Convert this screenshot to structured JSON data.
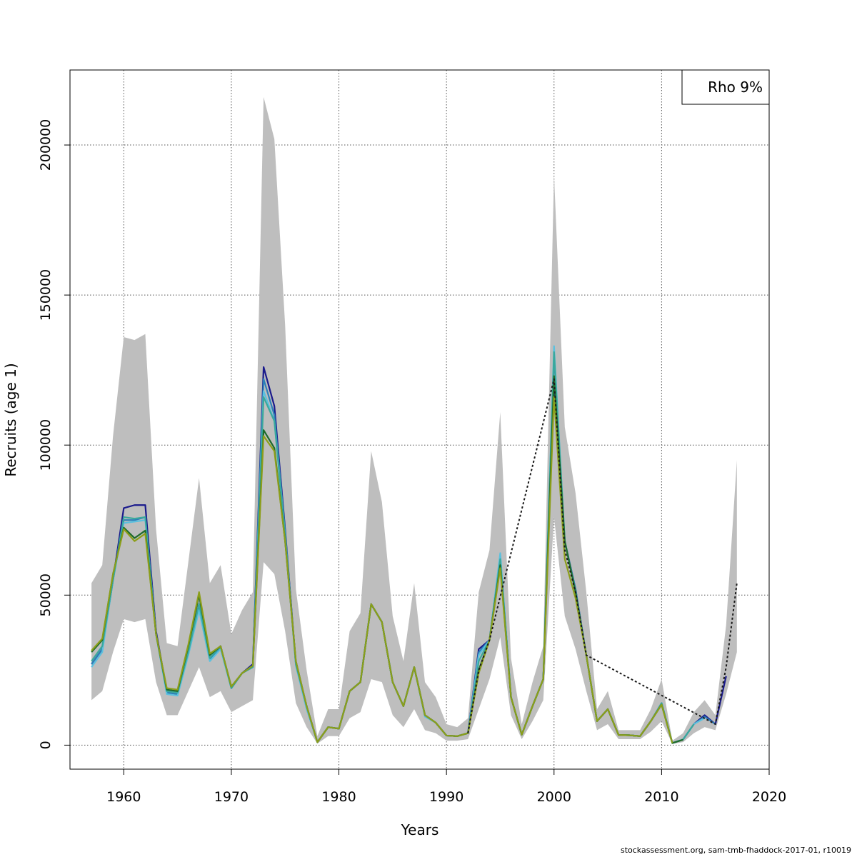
{
  "chart_data": {
    "type": "line",
    "title": "",
    "xlabel": "Years",
    "ylabel": "Recruits (age 1)",
    "xlim": [
      1955,
      2020
    ],
    "ylim": [
      -8000,
      225000
    ],
    "xticks": [
      1960,
      1970,
      1980,
      1990,
      2000,
      2010,
      2020
    ],
    "yticks": [
      0,
      50000,
      100000,
      150000,
      200000
    ],
    "grid": true,
    "legend": {
      "position": "top-right",
      "text": "Rho 9%"
    },
    "band": {
      "x": [
        1957,
        1958,
        1959,
        1960,
        1961,
        1962,
        1963,
        1964,
        1965,
        1966,
        1967,
        1968,
        1969,
        1970,
        1971,
        1972,
        1973,
        1974,
        1975,
        1976,
        1977,
        1978,
        1979,
        1980,
        1981,
        1982,
        1983,
        1984,
        1985,
        1986,
        1987,
        1988,
        1989,
        1990,
        1991,
        1992,
        1993,
        1994,
        1995,
        1996,
        1997,
        1998,
        1999,
        2000,
        2001,
        2002,
        2003,
        2004,
        2005,
        2006,
        2007,
        2008,
        2009,
        2010,
        2011,
        2012,
        2013,
        2014,
        2015,
        2016,
        2017
      ],
      "upper": [
        54000,
        60000,
        103000,
        136000,
        135000,
        137000,
        72000,
        34000,
        33000,
        61000,
        89000,
        54000,
        60000,
        37000,
        45000,
        51000,
        216000,
        202000,
        140000,
        52000,
        25000,
        3000,
        12000,
        12000,
        38000,
        44000,
        98000,
        81000,
        43000,
        28000,
        54000,
        21000,
        16000,
        7000,
        6000,
        9000,
        51000,
        65000,
        111000,
        29000,
        7000,
        21000,
        33000,
        190000,
        106000,
        84000,
        51000,
        12000,
        18000,
        5000,
        5000,
        5000,
        12000,
        22000,
        1500,
        4000,
        11000,
        15000,
        10000,
        40000,
        95000
      ],
      "lower": [
        15000,
        18000,
        31000,
        42000,
        41000,
        42000,
        21000,
        10000,
        10000,
        18000,
        26000,
        16000,
        18000,
        11000,
        13000,
        15000,
        61000,
        57000,
        38000,
        14000,
        6000,
        500,
        3000,
        3000,
        9000,
        11000,
        22000,
        21000,
        10000,
        6000,
        12000,
        5000,
        4000,
        1500,
        1500,
        2000,
        12000,
        22000,
        36000,
        10000,
        2000,
        8000,
        15000,
        76000,
        43000,
        32000,
        18000,
        5000,
        7000,
        2000,
        2000,
        2000,
        4500,
        8000,
        400,
        1000,
        4000,
        6000,
        5000,
        17000,
        31000
      ]
    },
    "series": [
      {
        "color": "#1a1a8c",
        "x": [
          1957,
          1958,
          1959,
          1960,
          1961,
          1962,
          1963,
          1964,
          1965,
          1966,
          1967,
          1968,
          1969,
          1970,
          1971,
          1972,
          1973,
          1974,
          1975,
          1976,
          1977,
          1978,
          1979,
          1980,
          1981,
          1982,
          1983,
          1984,
          1985,
          1986,
          1987,
          1988,
          1989,
          1990,
          1991,
          1992,
          1993,
          1994,
          1995,
          1996,
          1997,
          1998,
          1999,
          2000,
          2001,
          2002,
          2003,
          2004,
          2005,
          2006,
          2007,
          2008,
          2009,
          2010,
          2011,
          2012,
          2013,
          2014,
          2015,
          2016
        ],
        "y": [
          27000,
          32000,
          55000,
          79000,
          80000,
          80000,
          38000,
          18000,
          17500,
          32000,
          47000,
          29000,
          33000,
          19000,
          24000,
          27000,
          126000,
          113000,
          72000,
          27000,
          13000,
          1000,
          6000,
          5500,
          18000,
          21000,
          47000,
          41000,
          21000,
          13000,
          26000,
          10000,
          7500,
          3200,
          3000,
          4000,
          32000,
          35000,
          63000,
          16000,
          3500,
          13000,
          22000,
          121000,
          68000,
          52000,
          30000,
          8000,
          12000,
          3400,
          3300,
          3000,
          8000,
          14000,
          700,
          1900,
          7000,
          10000,
          7000,
          23000
        ]
      },
      {
        "color": "#2c7fb8",
        "x": [
          1957,
          1958,
          1959,
          1960,
          1961,
          1962,
          1963,
          1964,
          1965,
          1966,
          1967,
          1968,
          1969,
          1970,
          1971,
          1972,
          1973,
          1974,
          1975,
          1976,
          1977,
          1978,
          1979,
          1980,
          1981,
          1982,
          1983,
          1984,
          1985,
          1986,
          1987,
          1988,
          1989,
          1990,
          1991,
          1992,
          1993,
          1994,
          1995,
          1996,
          1997,
          1998,
          1999,
          2000,
          2001,
          2002,
          2003,
          2004,
          2005,
          2006,
          2007,
          2008,
          2009,
          2010,
          2011,
          2012,
          2013,
          2014,
          2015
        ],
        "y": [
          27000,
          32000,
          55000,
          75000,
          75000,
          76000,
          37000,
          17500,
          17000,
          31000,
          46000,
          28500,
          32500,
          19000,
          24000,
          26500,
          122000,
          110000,
          71000,
          27000,
          12500,
          1000,
          6000,
          5500,
          18000,
          21000,
          47000,
          41000,
          21000,
          13000,
          26000,
          10000,
          7500,
          3200,
          3000,
          4000,
          31000,
          35000,
          63000,
          16000,
          3500,
          13000,
          22000,
          130000,
          68000,
          52000,
          30000,
          8000,
          12000,
          3400,
          3300,
          3000,
          8000,
          14000,
          700,
          1900,
          7000,
          9500,
          7000
        ]
      },
      {
        "color": "#5bc0de",
        "x": [
          1957,
          1958,
          1959,
          1960,
          1961,
          1962,
          1963,
          1964,
          1965,
          1966,
          1967,
          1968,
          1969,
          1970,
          1971,
          1972,
          1973,
          1974,
          1975,
          1976,
          1977,
          1978,
          1979,
          1980,
          1981,
          1982,
          1983,
          1984,
          1985,
          1986,
          1987,
          1988,
          1989,
          1990,
          1991,
          1992,
          1993,
          1994,
          1995,
          1996,
          1997,
          1998,
          1999,
          2000,
          2001,
          2002,
          2003,
          2004,
          2005,
          2006,
          2007,
          2008,
          2009,
          2010,
          2011,
          2012,
          2013,
          2014
        ],
        "y": [
          26000,
          31000,
          55000,
          74000,
          74500,
          75000,
          37000,
          17000,
          16500,
          30000,
          45000,
          28000,
          32000,
          19000,
          24000,
          26000,
          118000,
          108000,
          70000,
          26500,
          12000,
          1000,
          6000,
          5500,
          18000,
          21000,
          47000,
          41000,
          21000,
          13000,
          26000,
          9500,
          7500,
          3200,
          3000,
          4000,
          30000,
          35000,
          64000,
          16000,
          3500,
          13000,
          22000,
          133000,
          68000,
          51000,
          30000,
          8000,
          12000,
          3400,
          3300,
          3000,
          8000,
          14000,
          700,
          1900,
          7000,
          9000
        ]
      },
      {
        "color": "#3aa89c",
        "x": [
          1957,
          1958,
          1959,
          1960,
          1961,
          1962,
          1963,
          1964,
          1965,
          1966,
          1967,
          1968,
          1969,
          1970,
          1971,
          1972,
          1973,
          1974,
          1975,
          1976,
          1977,
          1978,
          1979,
          1980,
          1981,
          1982,
          1983,
          1984,
          1985,
          1986,
          1987,
          1988,
          1989,
          1990,
          1991,
          1992,
          1993,
          1994,
          1995,
          1996,
          1997,
          1998,
          1999,
          2000,
          2001,
          2002,
          2003,
          2004,
          2005,
          2006,
          2007,
          2008,
          2009,
          2010,
          2011,
          2012,
          2013
        ],
        "y": [
          28000,
          33000,
          55000,
          76000,
          75500,
          76000,
          37000,
          18000,
          17500,
          31000,
          47000,
          29000,
          33000,
          19000,
          24000,
          26000,
          116000,
          108000,
          70000,
          27000,
          13000,
          1000,
          6000,
          5500,
          18000,
          21000,
          47000,
          41000,
          21000,
          13000,
          26000,
          10000,
          7500,
          3200,
          3000,
          4000,
          28000,
          35000,
          62000,
          16000,
          3500,
          13000,
          22000,
          131000,
          68000,
          51000,
          30000,
          8000,
          12000,
          3400,
          3300,
          3000,
          8000,
          14000,
          700,
          1900,
          7000
        ]
      },
      {
        "color": "#1e6b2a",
        "x": [
          1957,
          1958,
          1959,
          1960,
          1961,
          1962,
          1963,
          1964,
          1965,
          1966,
          1967,
          1968,
          1969,
          1970,
          1971,
          1972,
          1973,
          1974,
          1975,
          1976,
          1977,
          1978,
          1979,
          1980,
          1981,
          1982,
          1983,
          1984,
          1985,
          1986,
          1987,
          1988,
          1989,
          1990,
          1991,
          1992,
          1993,
          1994,
          1995,
          1996,
          1997,
          1998,
          1999,
          2000,
          2001,
          2002,
          2003,
          2004,
          2005,
          2006,
          2007,
          2008,
          2009,
          2010,
          2011,
          2012
        ],
        "y": [
          31000,
          35000,
          57000,
          72500,
          69000,
          71500,
          37000,
          18500,
          18000,
          33000,
          50000,
          30000,
          33000,
          19500,
          24000,
          26500,
          105000,
          99000,
          68000,
          28000,
          13000,
          1000,
          6000,
          5500,
          18000,
          21000,
          47000,
          41000,
          21000,
          13000,
          26000,
          10000,
          7500,
          3200,
          3000,
          4000,
          25000,
          35000,
          60000,
          16000,
          3500,
          13000,
          22000,
          123000,
          68000,
          51000,
          30000,
          8000,
          12000,
          3400,
          3300,
          3000,
          8000,
          13500,
          700,
          1800
        ]
      },
      {
        "color": "#8c9e1a",
        "x": [
          1957,
          1958,
          1959,
          1960,
          1961,
          1962,
          1963,
          1964,
          1965,
          1966,
          1967,
          1968,
          1969,
          1970,
          1971,
          1972,
          1973,
          1974,
          1975,
          1976,
          1977,
          1978,
          1979,
          1980,
          1981,
          1982,
          1983,
          1984,
          1985,
          1986,
          1987,
          1988,
          1989,
          1990,
          1991,
          1992,
          1993,
          1994,
          1995,
          1996,
          1997,
          1998,
          1999,
          2000,
          2001,
          2002,
          2003,
          2004,
          2005,
          2006,
          2007,
          2008,
          2009,
          2010,
          2011
        ],
        "y": [
          31500,
          35500,
          57000,
          72000,
          68000,
          70500,
          37000,
          19000,
          18500,
          33500,
          51000,
          30500,
          33000,
          19500,
          24000,
          26500,
          103000,
          98000,
          68000,
          28000,
          13000,
          1000,
          6000,
          5500,
          18000,
          21000,
          47000,
          41000,
          21000,
          13000,
          26000,
          10000,
          7500,
          3200,
          3000,
          4000,
          24000,
          35000,
          59000,
          16000,
          3500,
          13000,
          22000,
          116000,
          62000,
          49000,
          30000,
          8000,
          12000,
          3400,
          3300,
          3000,
          8000,
          13500,
          700
        ]
      },
      {
        "color": "#1a1a1a",
        "dashed": true,
        "x": [
          1992,
          1993,
          1994,
          2000,
          2001,
          2002,
          2003,
          2015,
          2016,
          2017
        ],
        "y": [
          4000,
          25000,
          35000,
          122000,
          65000,
          51000,
          30000,
          7000,
          26000,
          54000
        ]
      }
    ]
  },
  "footer": "stockassessment.org, sam-tmb-fhaddock-2017-01, r10019"
}
